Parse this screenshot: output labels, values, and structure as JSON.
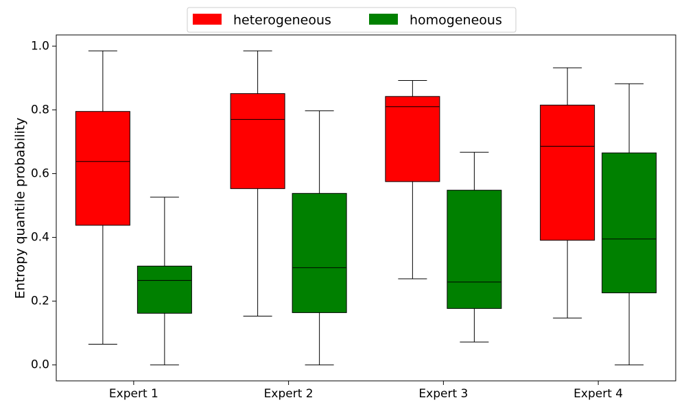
{
  "chart_data": {
    "type": "boxplot",
    "title": "",
    "xlabel": "",
    "ylabel": "Entropy quantile probability",
    "ylim": [
      -0.05,
      1.035
    ],
    "yticks": [
      0.0,
      0.2,
      0.4,
      0.6,
      0.8,
      1.0
    ],
    "ytick_labels": [
      "0.0",
      "0.2",
      "0.4",
      "0.6",
      "0.8",
      "1.0"
    ],
    "legend_position": "top-center",
    "categories": [
      "Expert 1",
      "Expert 2",
      "Expert 3",
      "Expert 4"
    ],
    "series": [
      {
        "name": "heterogeneous",
        "color": "#ff0000",
        "boxes": [
          {
            "whisker_low": 0.065,
            "q1": 0.438,
            "median": 0.638,
            "q3": 0.795,
            "whisker_high": 0.985
          },
          {
            "whisker_low": 0.153,
            "q1": 0.553,
            "median": 0.77,
            "q3": 0.851,
            "whisker_high": 0.985
          },
          {
            "whisker_low": 0.27,
            "q1": 0.575,
            "median": 0.81,
            "q3": 0.842,
            "whisker_high": 0.892
          },
          {
            "whisker_low": 0.147,
            "q1": 0.391,
            "median": 0.686,
            "q3": 0.815,
            "whisker_high": 0.932
          }
        ]
      },
      {
        "name": "homogeneous",
        "color": "#008000",
        "boxes": [
          {
            "whisker_low": 0.0,
            "q1": 0.162,
            "median": 0.265,
            "q3": 0.31,
            "whisker_high": 0.526
          },
          {
            "whisker_low": 0.0,
            "q1": 0.164,
            "median": 0.305,
            "q3": 0.538,
            "whisker_high": 0.797
          },
          {
            "whisker_low": 0.072,
            "q1": 0.177,
            "median": 0.26,
            "q3": 0.548,
            "whisker_high": 0.667
          },
          {
            "whisker_low": 0.0,
            "q1": 0.226,
            "median": 0.395,
            "q3": 0.665,
            "whisker_high": 0.882
          }
        ]
      }
    ]
  }
}
